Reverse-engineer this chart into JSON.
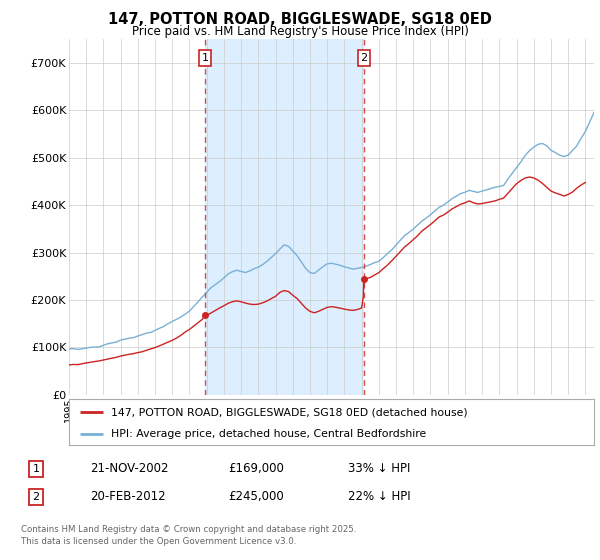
{
  "title": "147, POTTON ROAD, BIGGLESWADE, SG18 0ED",
  "subtitle": "Price paid vs. HM Land Registry's House Price Index (HPI)",
  "background_color": "#ffffff",
  "plot_bg_color": "#ffffff",
  "ylim": [
    0,
    750000
  ],
  "yticks": [
    0,
    100000,
    200000,
    300000,
    400000,
    500000,
    600000,
    700000
  ],
  "ytick_labels": [
    "£0",
    "£100K",
    "£200K",
    "£300K",
    "£400K",
    "£500K",
    "£600K",
    "£700K"
  ],
  "sale1_date": 2002.9,
  "sale1_price": 169000,
  "sale1_label": "1",
  "sale1_text": "21-NOV-2002",
  "sale1_amount": "£169,000",
  "sale1_hpi": "33% ↓ HPI",
  "sale2_date": 2012.13,
  "sale2_price": 245000,
  "sale2_label": "2",
  "sale2_text": "20-FEB-2012",
  "sale2_amount": "£245,000",
  "sale2_hpi": "22% ↓ HPI",
  "hpi_color": "#7ab0d4",
  "price_color": "#cc2222",
  "vline_color": "#cc2222",
  "shade_color": "#ddeeff",
  "legend_line1": "147, POTTON ROAD, BIGGLESWADE, SG18 0ED (detached house)",
  "legend_line2": "HPI: Average price, detached house, Central Bedfordshire",
  "footer": "Contains HM Land Registry data © Crown copyright and database right 2025.\nThis data is licensed under the Open Government Licence v3.0.",
  "xmin": 1995,
  "xmax": 2025.5,
  "hpi_points": [
    [
      1995.0,
      97000
    ],
    [
      1995.25,
      97500
    ],
    [
      1995.5,
      96000
    ],
    [
      1995.75,
      97000
    ],
    [
      1996.0,
      99000
    ],
    [
      1996.25,
      100500
    ],
    [
      1996.5,
      101000
    ],
    [
      1996.75,
      102000
    ],
    [
      1997.0,
      105000
    ],
    [
      1997.25,
      108000
    ],
    [
      1997.5,
      110000
    ],
    [
      1997.75,
      112000
    ],
    [
      1998.0,
      116000
    ],
    [
      1998.25,
      118000
    ],
    [
      1998.5,
      120000
    ],
    [
      1998.75,
      122000
    ],
    [
      1999.0,
      125000
    ],
    [
      1999.25,
      128000
    ],
    [
      1999.5,
      131000
    ],
    [
      1999.75,
      133000
    ],
    [
      2000.0,
      137000
    ],
    [
      2000.25,
      141000
    ],
    [
      2000.5,
      145000
    ],
    [
      2000.75,
      150000
    ],
    [
      2001.0,
      155000
    ],
    [
      2001.25,
      160000
    ],
    [
      2001.5,
      165000
    ],
    [
      2001.75,
      172000
    ],
    [
      2002.0,
      178000
    ],
    [
      2002.25,
      188000
    ],
    [
      2002.5,
      198000
    ],
    [
      2002.75,
      208000
    ],
    [
      2003.0,
      218000
    ],
    [
      2003.25,
      228000
    ],
    [
      2003.5,
      235000
    ],
    [
      2003.75,
      242000
    ],
    [
      2004.0,
      250000
    ],
    [
      2004.25,
      258000
    ],
    [
      2004.5,
      262000
    ],
    [
      2004.75,
      265000
    ],
    [
      2005.0,
      262000
    ],
    [
      2005.25,
      260000
    ],
    [
      2005.5,
      263000
    ],
    [
      2005.75,
      268000
    ],
    [
      2006.0,
      272000
    ],
    [
      2006.25,
      278000
    ],
    [
      2006.5,
      285000
    ],
    [
      2006.75,
      292000
    ],
    [
      2007.0,
      300000
    ],
    [
      2007.25,
      310000
    ],
    [
      2007.5,
      318000
    ],
    [
      2007.75,
      315000
    ],
    [
      2008.0,
      305000
    ],
    [
      2008.25,
      295000
    ],
    [
      2008.5,
      282000
    ],
    [
      2008.75,
      268000
    ],
    [
      2009.0,
      260000
    ],
    [
      2009.25,
      258000
    ],
    [
      2009.5,
      265000
    ],
    [
      2009.75,
      272000
    ],
    [
      2010.0,
      278000
    ],
    [
      2010.25,
      280000
    ],
    [
      2010.5,
      278000
    ],
    [
      2010.75,
      275000
    ],
    [
      2011.0,
      272000
    ],
    [
      2011.25,
      270000
    ],
    [
      2011.5,
      268000
    ],
    [
      2011.75,
      270000
    ],
    [
      2012.0,
      272000
    ],
    [
      2012.25,
      275000
    ],
    [
      2012.5,
      278000
    ],
    [
      2012.75,
      282000
    ],
    [
      2013.0,
      285000
    ],
    [
      2013.25,
      292000
    ],
    [
      2013.5,
      300000
    ],
    [
      2013.75,
      308000
    ],
    [
      2014.0,
      318000
    ],
    [
      2014.25,
      328000
    ],
    [
      2014.5,
      338000
    ],
    [
      2014.75,
      345000
    ],
    [
      2015.0,
      352000
    ],
    [
      2015.25,
      360000
    ],
    [
      2015.5,
      368000
    ],
    [
      2015.75,
      375000
    ],
    [
      2016.0,
      382000
    ],
    [
      2016.25,
      390000
    ],
    [
      2016.5,
      398000
    ],
    [
      2016.75,
      402000
    ],
    [
      2017.0,
      408000
    ],
    [
      2017.25,
      415000
    ],
    [
      2017.5,
      420000
    ],
    [
      2017.75,
      425000
    ],
    [
      2018.0,
      428000
    ],
    [
      2018.25,
      432000
    ],
    [
      2018.5,
      430000
    ],
    [
      2018.75,
      428000
    ],
    [
      2019.0,
      430000
    ],
    [
      2019.25,
      432000
    ],
    [
      2019.5,
      435000
    ],
    [
      2019.75,
      438000
    ],
    [
      2020.0,
      440000
    ],
    [
      2020.25,
      442000
    ],
    [
      2020.5,
      455000
    ],
    [
      2020.75,
      468000
    ],
    [
      2021.0,
      480000
    ],
    [
      2021.25,
      492000
    ],
    [
      2021.5,
      505000
    ],
    [
      2021.75,
      515000
    ],
    [
      2022.0,
      522000
    ],
    [
      2022.25,
      528000
    ],
    [
      2022.5,
      530000
    ],
    [
      2022.75,
      525000
    ],
    [
      2023.0,
      515000
    ],
    [
      2023.25,
      510000
    ],
    [
      2023.5,
      505000
    ],
    [
      2023.75,
      502000
    ],
    [
      2024.0,
      505000
    ],
    [
      2024.25,
      515000
    ],
    [
      2024.5,
      525000
    ],
    [
      2024.75,
      540000
    ],
    [
      2025.0,
      555000
    ],
    [
      2025.25,
      575000
    ],
    [
      2025.5,
      595000
    ]
  ],
  "price_points": [
    [
      1995.0,
      63000
    ],
    [
      1995.25,
      64000
    ],
    [
      1995.5,
      63500
    ],
    [
      1995.75,
      65000
    ],
    [
      1996.0,
      67000
    ],
    [
      1996.25,
      68000
    ],
    [
      1996.5,
      69500
    ],
    [
      1996.75,
      71000
    ],
    [
      1997.0,
      73000
    ],
    [
      1997.25,
      75000
    ],
    [
      1997.5,
      77000
    ],
    [
      1997.75,
      79000
    ],
    [
      1998.0,
      82000
    ],
    [
      1998.25,
      84000
    ],
    [
      1998.5,
      86000
    ],
    [
      1998.75,
      88000
    ],
    [
      1999.0,
      90000
    ],
    [
      1999.25,
      92000
    ],
    [
      1999.5,
      95000
    ],
    [
      1999.75,
      98000
    ],
    [
      2000.0,
      101000
    ],
    [
      2000.25,
      105000
    ],
    [
      2000.5,
      109000
    ],
    [
      2000.75,
      113000
    ],
    [
      2001.0,
      117000
    ],
    [
      2001.25,
      122000
    ],
    [
      2001.5,
      128000
    ],
    [
      2001.75,
      135000
    ],
    [
      2002.0,
      141000
    ],
    [
      2002.25,
      148000
    ],
    [
      2002.5,
      155000
    ],
    [
      2002.75,
      162000
    ],
    [
      2002.9,
      169000
    ],
    [
      2003.0,
      170000
    ],
    [
      2003.25,
      175000
    ],
    [
      2003.5,
      180000
    ],
    [
      2003.75,
      185000
    ],
    [
      2004.0,
      190000
    ],
    [
      2004.25,
      195000
    ],
    [
      2004.5,
      198000
    ],
    [
      2004.75,
      200000
    ],
    [
      2005.0,
      198000
    ],
    [
      2005.25,
      195000
    ],
    [
      2005.5,
      193000
    ],
    [
      2005.75,
      192000
    ],
    [
      2006.0,
      193000
    ],
    [
      2006.25,
      196000
    ],
    [
      2006.5,
      200000
    ],
    [
      2006.75,
      205000
    ],
    [
      2007.0,
      210000
    ],
    [
      2007.25,
      218000
    ],
    [
      2007.5,
      222000
    ],
    [
      2007.75,
      220000
    ],
    [
      2008.0,
      212000
    ],
    [
      2008.25,
      205000
    ],
    [
      2008.5,
      195000
    ],
    [
      2008.75,
      185000
    ],
    [
      2009.0,
      178000
    ],
    [
      2009.25,
      175000
    ],
    [
      2009.5,
      178000
    ],
    [
      2009.75,
      182000
    ],
    [
      2010.0,
      186000
    ],
    [
      2010.25,
      188000
    ],
    [
      2010.5,
      187000
    ],
    [
      2010.75,
      185000
    ],
    [
      2011.0,
      183000
    ],
    [
      2011.25,
      181000
    ],
    [
      2011.5,
      180000
    ],
    [
      2011.75,
      182000
    ],
    [
      2012.0,
      185000
    ],
    [
      2012.1,
      209000
    ],
    [
      2012.13,
      245000
    ],
    [
      2012.25,
      247000
    ],
    [
      2012.5,
      250000
    ],
    [
      2012.75,
      255000
    ],
    [
      2013.0,
      260000
    ],
    [
      2013.25,
      268000
    ],
    [
      2013.5,
      276000
    ],
    [
      2013.75,
      285000
    ],
    [
      2014.0,
      295000
    ],
    [
      2014.25,
      305000
    ],
    [
      2014.5,
      315000
    ],
    [
      2014.75,
      322000
    ],
    [
      2015.0,
      330000
    ],
    [
      2015.25,
      338000
    ],
    [
      2015.5,
      348000
    ],
    [
      2015.75,
      355000
    ],
    [
      2016.0,
      362000
    ],
    [
      2016.25,
      370000
    ],
    [
      2016.5,
      378000
    ],
    [
      2016.75,
      382000
    ],
    [
      2017.0,
      388000
    ],
    [
      2017.25,
      395000
    ],
    [
      2017.5,
      400000
    ],
    [
      2017.75,
      405000
    ],
    [
      2018.0,
      408000
    ],
    [
      2018.25,
      412000
    ],
    [
      2018.5,
      408000
    ],
    [
      2018.75,
      405000
    ],
    [
      2019.0,
      406000
    ],
    [
      2019.25,
      408000
    ],
    [
      2019.5,
      410000
    ],
    [
      2019.75,
      412000
    ],
    [
      2020.0,
      415000
    ],
    [
      2020.25,
      418000
    ],
    [
      2020.5,
      428000
    ],
    [
      2020.75,
      438000
    ],
    [
      2021.0,
      448000
    ],
    [
      2021.25,
      455000
    ],
    [
      2021.5,
      460000
    ],
    [
      2021.75,
      462000
    ],
    [
      2022.0,
      460000
    ],
    [
      2022.25,
      455000
    ],
    [
      2022.5,
      448000
    ],
    [
      2022.75,
      440000
    ],
    [
      2023.0,
      432000
    ],
    [
      2023.25,
      428000
    ],
    [
      2023.5,
      425000
    ],
    [
      2023.75,
      422000
    ],
    [
      2024.0,
      425000
    ],
    [
      2024.25,
      430000
    ],
    [
      2024.5,
      438000
    ],
    [
      2024.75,
      445000
    ],
    [
      2025.0,
      450000
    ]
  ]
}
